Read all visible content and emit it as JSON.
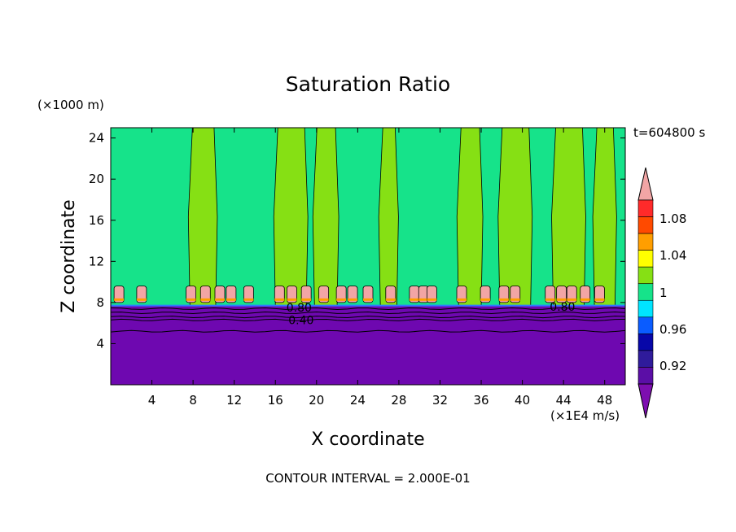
{
  "chart_data": {
    "type": "heatmap",
    "title": "Saturation Ratio",
    "xlabel": "X coordinate",
    "ylabel": "Z coordinate",
    "x_units": "(×1E4 m/s)",
    "y_units": "(×1000 m)",
    "time_label": "t=604800 s",
    "footer": "CONTOUR INTERVAL = 2.000E-01",
    "xlim": [
      0,
      50
    ],
    "ylim": [
      0,
      25
    ],
    "x_ticks": [
      4,
      8,
      12,
      16,
      20,
      24,
      28,
      32,
      36,
      40,
      44,
      48
    ],
    "y_ticks": [
      4,
      8,
      12,
      16,
      20,
      24
    ],
    "grid": false,
    "contour_labels": [
      {
        "text": "0.80",
        "x": 18.3,
        "y": 7.5
      },
      {
        "text": "0.40",
        "x": 18.5,
        "y": 6.3
      },
      {
        "text": "0.80",
        "x": 43.9,
        "y": 7.6
      }
    ],
    "colorbar": {
      "levels": [
        0.92,
        0.96,
        1,
        1.04,
        1.08
      ],
      "level_labels": [
        "0.92",
        "0.96",
        "1",
        "1.04",
        "1.08"
      ],
      "colors": [
        "#5b0ea6",
        "#2f1b9b",
        "#0707a8",
        "#0a5cff",
        "#00e5ff",
        "#16e38a",
        "#86e014",
        "#ffff00",
        "#ff9e00",
        "#ff4a00",
        "#ff2a2a"
      ],
      "over_color": "#f2a5a5",
      "under_color": "#7d0eb0"
    },
    "regions": {
      "dry_layer": {
        "z_top": 7.7,
        "color": "#6e08b0"
      },
      "moist_layer": {
        "z_bottom": 7.7,
        "color": "#16e38a"
      },
      "cloud_columns_x": [
        [
          7.7,
          10.2
        ],
        [
          16.0,
          19.0
        ],
        [
          19.8,
          22.0
        ],
        [
          26.2,
          27.8
        ],
        [
          33.8,
          36.0
        ],
        [
          37.8,
          40.8
        ],
        [
          43.0,
          46.0
        ],
        [
          47.0,
          49.0
        ]
      ],
      "cloud_column_color": "#86e014",
      "supersat_cells_x": [
        0.8,
        3.0,
        7.8,
        9.2,
        10.6,
        11.7,
        13.4,
        16.4,
        17.6,
        19.0,
        20.7,
        22.4,
        23.5,
        25.0,
        27.2,
        29.5,
        30.4,
        31.2,
        34.1,
        36.4,
        38.2,
        39.3,
        42.7,
        43.8,
        44.8,
        46.1,
        47.5
      ],
      "supersat_color": "#f2a5a5"
    }
  }
}
